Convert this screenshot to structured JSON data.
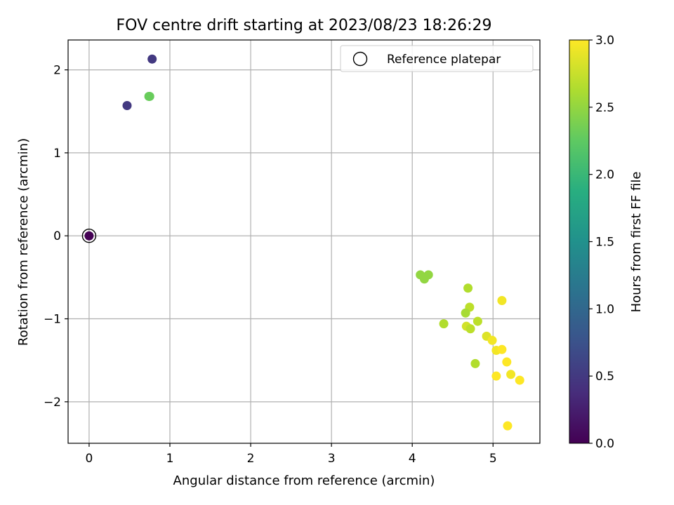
{
  "chart_data": {
    "type": "scatter",
    "title": "FOV centre drift starting at 2023/08/23 18:26:29",
    "xlabel": "Angular distance from reference (arcmin)",
    "ylabel": "Rotation from reference (arcmin)",
    "xlim": [
      -0.26,
      5.58
    ],
    "ylim": [
      -2.5,
      2.36
    ],
    "xticks": [
      0,
      1,
      2,
      3,
      4,
      5
    ],
    "yticks": [
      -2,
      -1,
      0,
      1,
      2
    ],
    "xtick_labels": [
      "0",
      "1",
      "2",
      "3",
      "4",
      "5"
    ],
    "ytick_labels": [
      "−2",
      "−1",
      "0",
      "1",
      "2"
    ],
    "grid": true,
    "colormap": "viridis",
    "colorbar": {
      "label": "Hours from first FF file",
      "range": [
        0.0,
        3.0
      ],
      "ticks": [
        0.0,
        0.5,
        1.0,
        1.5,
        2.0,
        2.5,
        3.0
      ],
      "tick_labels": [
        "0.0",
        "0.5",
        "1.0",
        "1.5",
        "2.0",
        "2.5",
        "3.0"
      ]
    },
    "legend": {
      "position": "top-right",
      "entries": [
        "Reference platepar"
      ]
    },
    "reference_point": {
      "x": 0.0,
      "y": 0.0
    },
    "points": [
      {
        "x": 0.0,
        "y": 0.0,
        "c": 0.0
      },
      {
        "x": 0.78,
        "y": 2.13,
        "c": 0.5
      },
      {
        "x": 0.47,
        "y": 1.57,
        "c": 0.5
      },
      {
        "x": 0.74,
        "y": 1.68,
        "c": 2.3
      },
      {
        "x": 0.75,
        "y": 1.68,
        "c": 2.3
      },
      {
        "x": 4.1,
        "y": -0.47,
        "c": 2.5
      },
      {
        "x": 4.15,
        "y": -0.52,
        "c": 2.5
      },
      {
        "x": 4.2,
        "y": -0.47,
        "c": 2.5
      },
      {
        "x": 4.39,
        "y": -1.06,
        "c": 2.65
      },
      {
        "x": 4.69,
        "y": -0.63,
        "c": 2.65
      },
      {
        "x": 4.71,
        "y": -0.86,
        "c": 2.7
      },
      {
        "x": 4.66,
        "y": -0.93,
        "c": 2.6
      },
      {
        "x": 4.67,
        "y": -1.09,
        "c": 2.8
      },
      {
        "x": 4.72,
        "y": -1.12,
        "c": 2.7
      },
      {
        "x": 4.81,
        "y": -1.03,
        "c": 2.7
      },
      {
        "x": 4.78,
        "y": -1.54,
        "c": 2.65
      },
      {
        "x": 4.92,
        "y": -1.21,
        "c": 2.85
      },
      {
        "x": 4.99,
        "y": -1.26,
        "c": 2.95
      },
      {
        "x": 5.04,
        "y": -1.38,
        "c": 2.95
      },
      {
        "x": 5.11,
        "y": -1.37,
        "c": 3.0
      },
      {
        "x": 5.11,
        "y": -0.78,
        "c": 2.95
      },
      {
        "x": 5.17,
        "y": -1.52,
        "c": 3.0
      },
      {
        "x": 5.04,
        "y": -1.69,
        "c": 3.0
      },
      {
        "x": 5.22,
        "y": -1.67,
        "c": 2.95
      },
      {
        "x": 5.33,
        "y": -1.74,
        "c": 3.0
      },
      {
        "x": 5.18,
        "y": -2.29,
        "c": 3.0
      }
    ]
  }
}
